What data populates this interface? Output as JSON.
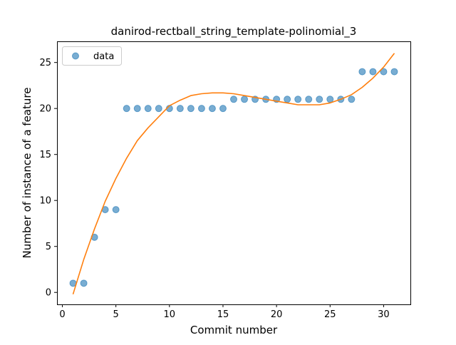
{
  "chart_data": {
    "type": "scatter",
    "title": "danirod-rectball_string_template-polinomial_3",
    "xlabel": "Commit number",
    "ylabel": "Number of instance of a feature",
    "xlim": [
      -0.5,
      32.5
    ],
    "ylim": [
      -1.3,
      27.3
    ],
    "xticks": [
      0,
      5,
      10,
      15,
      20,
      25,
      30
    ],
    "yticks": [
      0,
      5,
      10,
      15,
      20,
      25
    ],
    "grid": false,
    "legend": {
      "position": "top-left",
      "entries": [
        "data"
      ]
    },
    "series": [
      {
        "name": "data",
        "kind": "scatter",
        "color": "#1f77b4",
        "alpha": 0.6,
        "x": [
          1,
          2,
          3,
          4,
          5,
          6,
          7,
          8,
          9,
          10,
          11,
          12,
          13,
          14,
          15,
          16,
          17,
          18,
          19,
          20,
          21,
          22,
          23,
          24,
          25,
          26,
          27,
          28,
          29,
          30,
          31
        ],
        "y": [
          1,
          1,
          6,
          9,
          9,
          20,
          20,
          20,
          20,
          20,
          20,
          20,
          20,
          20,
          20,
          21,
          21,
          21,
          21,
          21,
          21,
          21,
          21,
          21,
          21,
          21,
          21,
          24,
          24,
          24,
          24
        ]
      },
      {
        "kind": "line",
        "color": "#ff7f0e",
        "x": [
          1,
          2,
          3,
          4,
          5,
          6,
          7,
          8,
          9,
          10,
          11,
          12,
          13,
          14,
          15,
          16,
          17,
          18,
          19,
          20,
          21,
          22,
          23,
          24,
          25,
          26,
          27,
          28,
          29,
          30,
          31
        ],
        "y": [
          -0.2,
          3.6,
          6.9,
          9.9,
          12.4,
          14.6,
          16.5,
          17.9,
          19.1,
          20.3,
          20.9,
          21.4,
          21.6,
          21.7,
          21.7,
          21.6,
          21.4,
          21.2,
          21.0,
          20.8,
          20.6,
          20.4,
          20.4,
          20.4,
          20.6,
          21.0,
          21.5,
          22.3,
          23.3,
          24.5,
          26.0
        ]
      }
    ]
  }
}
